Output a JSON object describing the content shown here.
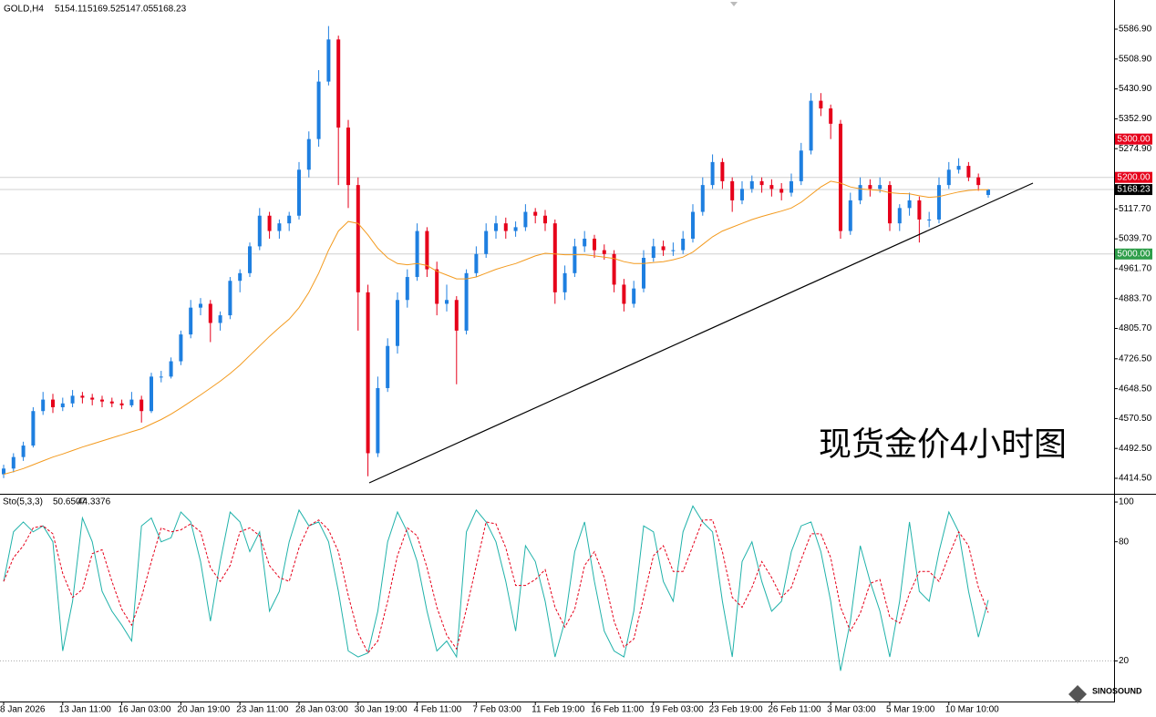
{
  "chart_data": [
    {
      "type": "candlestick",
      "symbol": "GOLD,H4",
      "up_color": "#1e7fe0",
      "down_color": "#e6001a",
      "ohlc": [
        [
          4425,
          4450,
          4415,
          4440
        ],
        [
          4440,
          4480,
          4430,
          4470
        ],
        [
          4470,
          4510,
          4460,
          4500
        ],
        [
          4500,
          4600,
          4495,
          4590
        ],
        [
          4590,
          4640,
          4580,
          4620
        ],
        [
          4620,
          4635,
          4585,
          4600
        ],
        [
          4600,
          4625,
          4590,
          4610
        ],
        [
          4610,
          4645,
          4600,
          4630
        ],
        [
          4630,
          4640,
          4610,
          4625
        ],
        [
          4625,
          4635,
          4605,
          4620
        ],
        [
          4620,
          4630,
          4600,
          4615
        ],
        [
          4615,
          4625,
          4600,
          4610
        ],
        [
          4610,
          4620,
          4595,
          4605
        ],
        [
          4605,
          4640,
          4600,
          4620
        ],
        [
          4620,
          4630,
          4560,
          4590
        ],
        [
          4590,
          4690,
          4585,
          4680
        ],
        [
          4680,
          4695,
          4665,
          4680
        ],
        [
          4680,
          4730,
          4675,
          4720
        ],
        [
          4720,
          4800,
          4710,
          4790
        ],
        [
          4790,
          4880,
          4780,
          4860
        ],
        [
          4860,
          4885,
          4840,
          4870
        ],
        [
          4870,
          4880,
          4770,
          4820
        ],
        [
          4820,
          4850,
          4800,
          4840
        ],
        [
          4840,
          4940,
          4830,
          4930
        ],
        [
          4930,
          4960,
          4900,
          4950
        ],
        [
          4950,
          5030,
          4940,
          5020
        ],
        [
          5020,
          5120,
          5010,
          5100
        ],
        [
          5100,
          5110,
          5040,
          5060
        ],
        [
          5060,
          5090,
          5040,
          5080
        ],
        [
          5080,
          5110,
          5060,
          5100
        ],
        [
          5100,
          5240,
          5090,
          5220
        ],
        [
          5220,
          5320,
          5200,
          5300
        ],
        [
          5300,
          5480,
          5280,
          5450
        ],
        [
          5450,
          5595,
          5440,
          5560
        ],
        [
          5560,
          5570,
          5180,
          5330
        ],
        [
          5330,
          5350,
          5120,
          5180
        ],
        [
          5180,
          5200,
          4800,
          4900
        ],
        [
          4900,
          4920,
          4420,
          4480
        ],
        [
          4480,
          4680,
          4470,
          4650
        ],
        [
          4650,
          4780,
          4640,
          4760
        ],
        [
          4760,
          4900,
          4740,
          4880
        ],
        [
          4880,
          4960,
          4860,
          4940
        ],
        [
          4940,
          5080,
          4930,
          5060
        ],
        [
          5060,
          5070,
          4940,
          4960
        ],
        [
          4960,
          4980,
          4840,
          4870
        ],
        [
          4870,
          4920,
          4850,
          4880
        ],
        [
          4880,
          4890,
          4660,
          4800
        ],
        [
          4800,
          4960,
          4790,
          4950
        ],
        [
          4950,
          5020,
          4940,
          5000
        ],
        [
          5000,
          5080,
          4990,
          5060
        ],
        [
          5060,
          5100,
          5040,
          5080
        ],
        [
          5080,
          5095,
          5040,
          5060
        ],
        [
          5060,
          5085,
          5045,
          5070
        ],
        [
          5070,
          5130,
          5060,
          5110
        ],
        [
          5110,
          5120,
          5080,
          5100
        ],
        [
          5100,
          5115,
          5060,
          5080
        ],
        [
          5080,
          5090,
          4870,
          4900
        ],
        [
          4900,
          4970,
          4880,
          4950
        ],
        [
          4950,
          5040,
          4940,
          5020
        ],
        [
          5020,
          5060,
          5005,
          5040
        ],
        [
          5040,
          5050,
          4990,
          5010
        ],
        [
          5010,
          5025,
          4985,
          5000
        ],
        [
          5000,
          5010,
          4900,
          4920
        ],
        [
          4920,
          4935,
          4850,
          4870
        ],
        [
          4870,
          4930,
          4860,
          4910
        ],
        [
          4910,
          5010,
          4900,
          4990
        ],
        [
          4990,
          5040,
          4980,
          5020
        ],
        [
          5020,
          5035,
          4995,
          5010
        ],
        [
          5010,
          5030,
          4995,
          5010
        ],
        [
          5010,
          5060,
          5000,
          5040
        ],
        [
          5040,
          5130,
          5030,
          5110
        ],
        [
          5110,
          5200,
          5100,
          5180
        ],
        [
          5180,
          5260,
          5170,
          5240
        ],
        [
          5240,
          5250,
          5170,
          5190
        ],
        [
          5190,
          5200,
          5110,
          5140
        ],
        [
          5140,
          5190,
          5130,
          5170
        ],
        [
          5170,
          5205,
          5160,
          5190
        ],
        [
          5190,
          5200,
          5160,
          5180
        ],
        [
          5180,
          5195,
          5150,
          5170
        ],
        [
          5170,
          5185,
          5140,
          5160
        ],
        [
          5160,
          5210,
          5150,
          5190
        ],
        [
          5190,
          5290,
          5180,
          5270
        ],
        [
          5270,
          5420,
          5260,
          5400
        ],
        [
          5400,
          5420,
          5360,
          5380
        ],
        [
          5380,
          5390,
          5300,
          5340
        ],
        [
          5340,
          5350,
          5040,
          5060
        ],
        [
          5060,
          5160,
          5050,
          5140
        ],
        [
          5140,
          5200,
          5130,
          5180
        ],
        [
          5180,
          5195,
          5150,
          5170
        ],
        [
          5170,
          5200,
          5160,
          5180
        ],
        [
          5180,
          5190,
          5060,
          5080
        ],
        [
          5080,
          5130,
          5060,
          5120
        ],
        [
          5120,
          5160,
          5100,
          5140
        ],
        [
          5140,
          5150,
          5030,
          5090
        ],
        [
          5090,
          5110,
          5070,
          5090
        ],
        [
          5090,
          5200,
          5080,
          5180
        ],
        [
          5180,
          5240,
          5170,
          5220
        ],
        [
          5220,
          5250,
          5210,
          5230
        ],
        [
          5230,
          5240,
          5190,
          5200
        ],
        [
          5200,
          5210,
          5165,
          5180
        ],
        [
          5154.11,
          5169.52,
          5147.05,
          5168.23
        ]
      ],
      "ma": {
        "color": "#f39a1e",
        "values": [
          4425,
          4432,
          4440,
          4450,
          4460,
          4470,
          4478,
          4487,
          4496,
          4504,
          4512,
          4520,
          4528,
          4536,
          4544,
          4556,
          4568,
          4582,
          4598,
          4615,
          4632,
          4650,
          4668,
          4688,
          4710,
          4735,
          4760,
          4785,
          4808,
          4830,
          4860,
          4900,
          4950,
          5010,
          5060,
          5085,
          5080,
          5050,
          5015,
          4990,
          4975,
          4972,
          4975,
          4970,
          4955,
          4945,
          4935,
          4935,
          4940,
          4950,
          4960,
          4968,
          4975,
          4985,
          4995,
          5002,
          5000,
          4998,
          4998,
          4998,
          4995,
          4992,
          4988,
          4980,
          4975,
          4975,
          4978,
          4980,
          4985,
          4992,
          5005,
          5025,
          5045,
          5060,
          5070,
          5080,
          5090,
          5098,
          5105,
          5112,
          5120,
          5135,
          5155,
          5175,
          5190,
          5185,
          5175,
          5170,
          5168,
          5166,
          5160,
          5158,
          5157,
          5152,
          5148,
          5150,
          5156,
          5162,
          5166,
          5168,
          5168
        ]
      },
      "trendline": {
        "color": "#000000",
        "x": [
          37.13,
          104.54
        ],
        "y": [
          4402.6,
          5185
        ]
      },
      "levels": [
        {
          "value": 5300,
          "label": "5300.00",
          "color": "#e6001a",
          "line": false
        },
        {
          "value": 5200,
          "label": "5200.00",
          "color": "#e6001a",
          "line": true
        },
        {
          "value": 5168.23,
          "label": "5168.23",
          "color": "#000000",
          "line": true
        },
        {
          "value": 5000,
          "label": "5000.00",
          "color": "#2e9e4a",
          "line": true
        }
      ],
      "ylim": [
        4374.1,
        5663
      ],
      "yticks": [
        {
          "value": 5586.9,
          "label": "5586.90"
        },
        {
          "value": 5508.9,
          "label": "5508.90"
        },
        {
          "value": 5430.9,
          "label": "5430.90"
        },
        {
          "value": 5352.9,
          "label": "5352.90"
        },
        {
          "value": 5274.9,
          "label": "5274.90"
        },
        {
          "value": 5117.7,
          "label": "5117.70"
        },
        {
          "value": 5039.7,
          "label": "5039.70"
        },
        {
          "value": 4961.7,
          "label": "4961.70"
        },
        {
          "value": 4883.7,
          "label": "4883.70"
        },
        {
          "value": 4805.7,
          "label": "4805.70"
        },
        {
          "value": 4726.5,
          "label": "4726.50"
        },
        {
          "value": 4648.5,
          "label": "4648.50"
        },
        {
          "value": 4570.5,
          "label": "4570.50"
        },
        {
          "value": 4492.5,
          "label": "4492.50"
        },
        {
          "value": 4414.5,
          "label": "4414.50"
        }
      ],
      "xlim": [
        -0.37,
        112.78
      ],
      "xticks": [
        {
          "value": 0,
          "label": "8 Jan 2026"
        },
        {
          "value": 6,
          "label": "13 Jan 11:00"
        },
        {
          "value": 12,
          "label": "16 Jan 03:00"
        },
        {
          "value": 18,
          "label": "20 Jan 19:00"
        },
        {
          "value": 24,
          "label": "23 Jan 11:00"
        },
        {
          "value": 30,
          "label": "28 Jan 03:00"
        },
        {
          "value": 36,
          "label": "30 Jan 19:00"
        },
        {
          "value": 42,
          "label": "4 Feb 11:00"
        },
        {
          "value": 48,
          "label": "7 Feb 03:00"
        },
        {
          "value": 54,
          "label": "11 Feb 19:00"
        },
        {
          "value": 60,
          "label": "16 Feb 11:00"
        },
        {
          "value": 66,
          "label": "19 Feb 03:00"
        },
        {
          "value": 72,
          "label": "23 Feb 19:00"
        },
        {
          "value": 78,
          "label": "26 Feb 11:00"
        },
        {
          "value": 84,
          "label": "3 Mar 03:00"
        },
        {
          "value": 90,
          "label": "5 Mar 19:00"
        },
        {
          "value": 96,
          "label": "10 Mar 10:00"
        }
      ],
      "watermark": "现货金价4小时图",
      "logo": "SINOSOUND"
    },
    {
      "type": "line",
      "title": "Sto(5,3,3)",
      "series": [
        {
          "color": "#20b2aa",
          "dash": false,
          "values": [
            60,
            85,
            90,
            85,
            88,
            80,
            25,
            50,
            92,
            80,
            55,
            45,
            38,
            30,
            88,
            92,
            80,
            82,
            95,
            90,
            70,
            40,
            70,
            95,
            90,
            75,
            85,
            45,
            55,
            80,
            96,
            88,
            90,
            80,
            55,
            25,
            22,
            24,
            45,
            80,
            95,
            85,
            70,
            45,
            25,
            30,
            22,
            85,
            96,
            90,
            80,
            60,
            35,
            78,
            70,
            50,
            22,
            40,
            75,
            90,
            60,
            35,
            25,
            22,
            45,
            88,
            85,
            60,
            50,
            85,
            98,
            90,
            85,
            50,
            22,
            70,
            80,
            60,
            45,
            50,
            75,
            88,
            90,
            75,
            50,
            15,
            40,
            78,
            60,
            45,
            22,
            50,
            90,
            55,
            50,
            75,
            95,
            85,
            55,
            32,
            50.6507
          ]
        },
        {
          "color": "#e6001a",
          "dash": true,
          "values": [
            60,
            72,
            78,
            87,
            88,
            84,
            64,
            52,
            56,
            74,
            76,
            60,
            46,
            38,
            52,
            70,
            87,
            85,
            86,
            89,
            85,
            67,
            60,
            68,
            85,
            87,
            83,
            68,
            62,
            60,
            77,
            88,
            91,
            86,
            75,
            53,
            34,
            24,
            30,
            50,
            73,
            87,
            83,
            67,
            47,
            33,
            26,
            46,
            68,
            90,
            89,
            77,
            58,
            58,
            61,
            66,
            47,
            37,
            46,
            68,
            75,
            62,
            40,
            27,
            31,
            52,
            73,
            78,
            65,
            65,
            78,
            91,
            91,
            75,
            52,
            47,
            57,
            70,
            62,
            52,
            57,
            71,
            84,
            84,
            72,
            47,
            35,
            44,
            59,
            61,
            42,
            39,
            54,
            65,
            65,
            60,
            73,
            85,
            78,
            57,
            44.3376
          ]
        }
      ],
      "ylim": [
        0,
        103.7
      ],
      "yticks": [
        100,
        80,
        20
      ],
      "levels": [
        20
      ],
      "xlim": [
        -0.37,
        112.78
      ]
    }
  ]
}
